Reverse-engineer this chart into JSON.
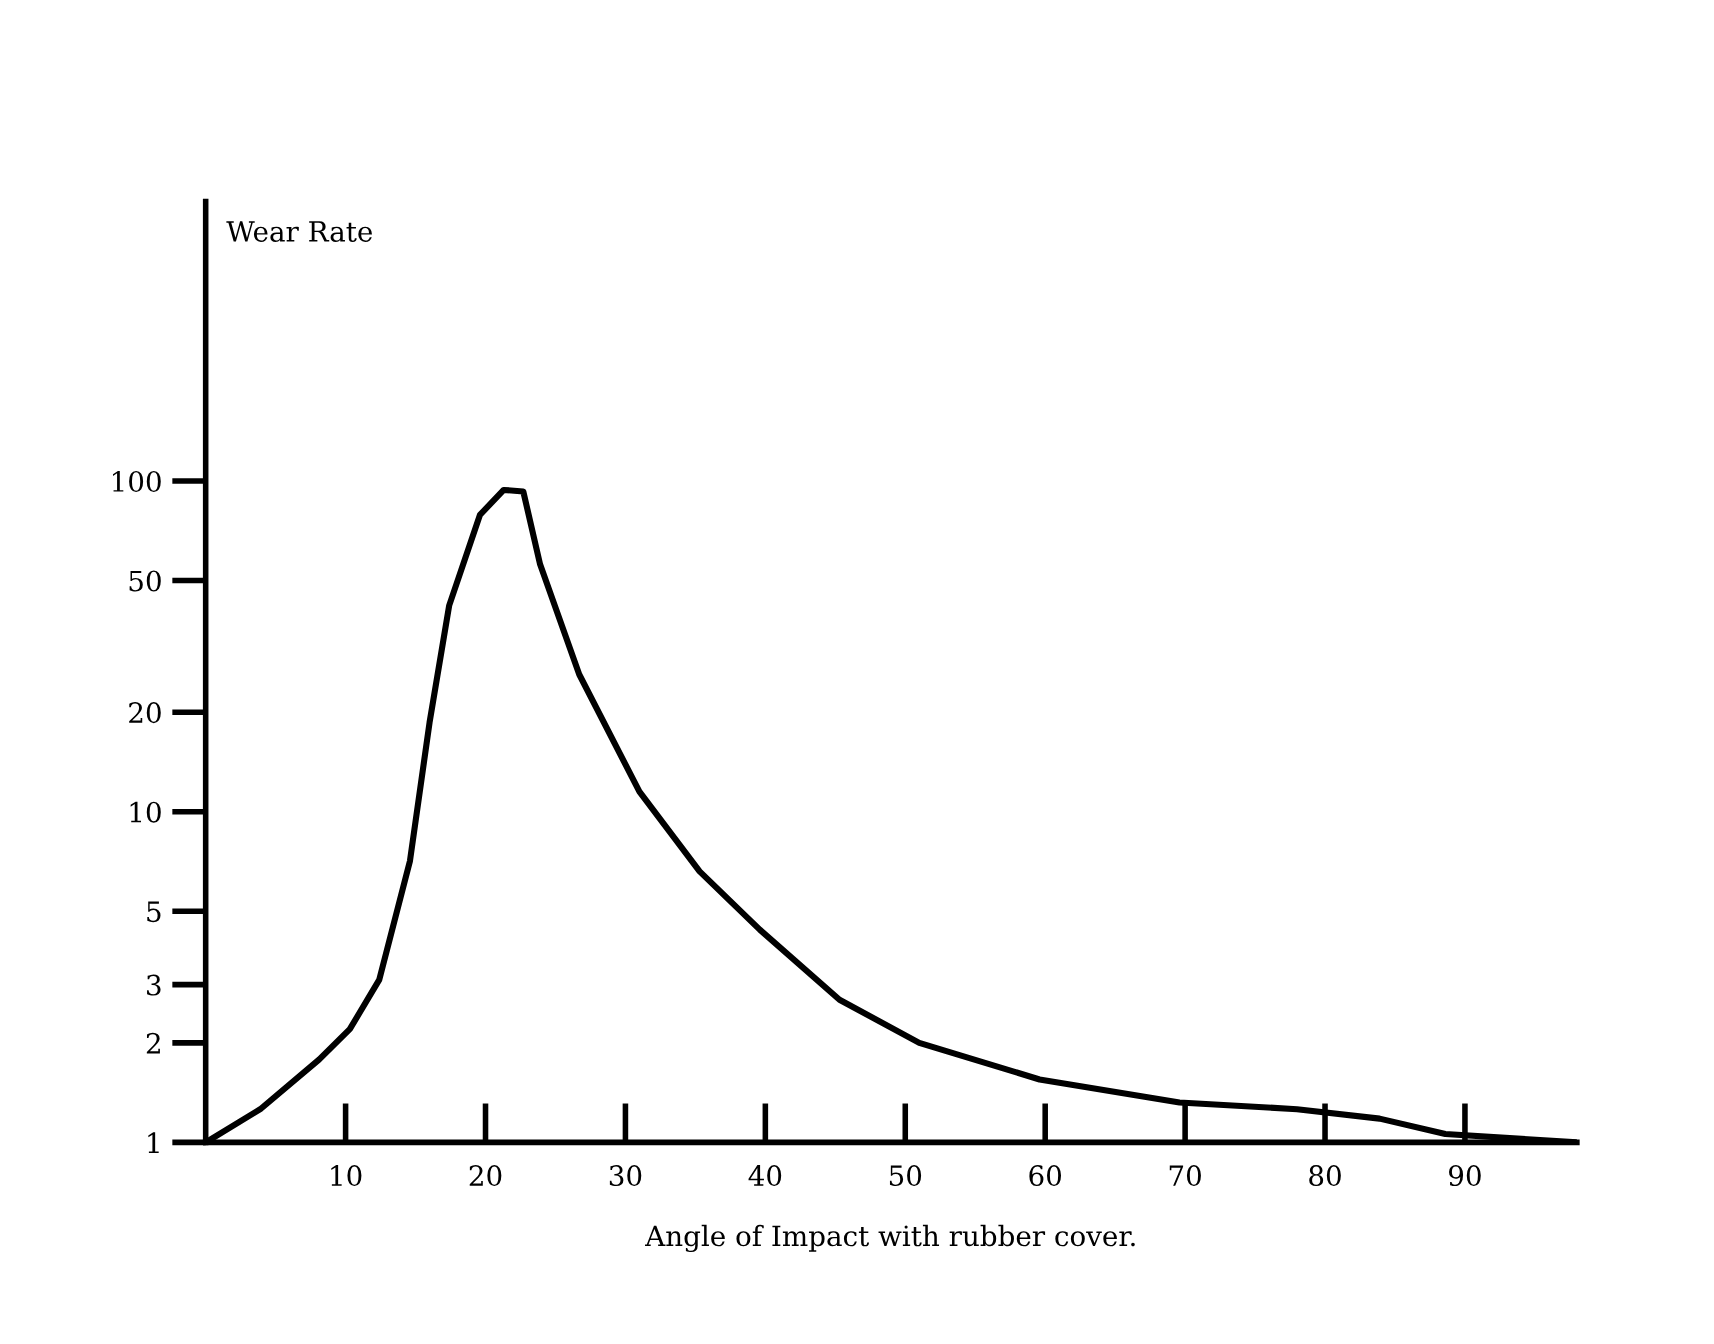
{
  "chart_data": {
    "type": "line",
    "ylabel": "Wear Rate",
    "xlabel": "Angle of Impact with rubber cover.",
    "log": "y",
    "xlim": [
      0,
      98
    ],
    "ylim": [
      1,
      700
    ],
    "xticks": [
      10,
      20,
      30,
      40,
      50,
      60,
      70,
      80,
      90
    ],
    "yticks": [
      1,
      2,
      3,
      5,
      10,
      20,
      50,
      100
    ],
    "grid": false,
    "legend": false,
    "marker": "none",
    "line_style": "solid",
    "series": [
      {
        "color": "#000000",
        "x": [
          0,
          3.9,
          8.1,
          10.3,
          12.4,
          14.6,
          16,
          17.4,
          19.6,
          21.3,
          22.7,
          23.9,
          26.7,
          31,
          35.3,
          39.6,
          45.3,
          51,
          59.6,
          69.6,
          78,
          83.9,
          88.6,
          98
        ],
        "values": [
          1,
          1.26,
          1.78,
          2.2,
          3.1,
          7.1,
          18.6,
          42,
          79,
          94,
          93,
          56,
          26,
          11.5,
          6.6,
          4.4,
          2.7,
          2.0,
          1.55,
          1.32,
          1.26,
          1.18,
          1.06,
          1
        ]
      }
    ]
  }
}
